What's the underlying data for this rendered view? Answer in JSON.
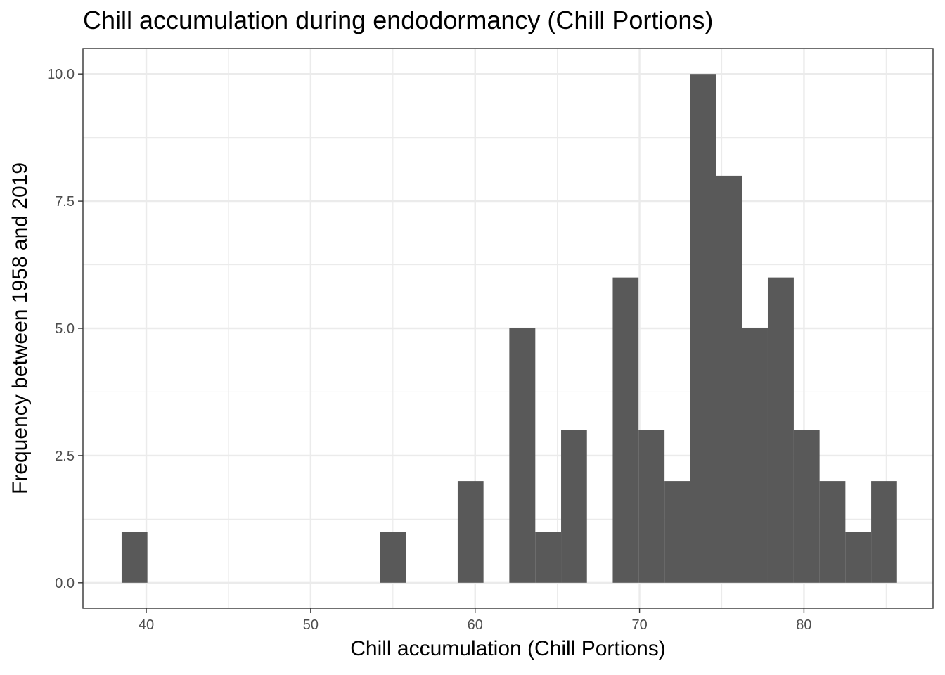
{
  "chart_data": {
    "type": "bar",
    "title": "Chill accumulation during endodormancy (Chill Portions)",
    "xlabel": "Chill accumulation (Chill Portions)",
    "ylabel": "Frequency between 1958 and 2019",
    "xlim": [
      36.15,
      87.85
    ],
    "ylim": [
      -0.5,
      10.5
    ],
    "x_ticks": [
      40,
      50,
      60,
      70,
      80
    ],
    "y_ticks": [
      0.0,
      2.5,
      5.0,
      7.5,
      10.0
    ],
    "y_tick_labels": [
      "0.0",
      "2.5",
      "5.0",
      "7.5",
      "10.0"
    ],
    "x_tick_labels": [
      "40",
      "50",
      "60",
      "70",
      "80"
    ],
    "grid": true,
    "bin_width": 1.572,
    "bins": [
      {
        "x_start": 38.5,
        "x_end": 40.07,
        "count": 1
      },
      {
        "x_start": 54.22,
        "x_end": 55.79,
        "count": 1
      },
      {
        "x_start": 58.94,
        "x_end": 60.51,
        "count": 2
      },
      {
        "x_start": 62.08,
        "x_end": 63.66,
        "count": 5
      },
      {
        "x_start": 63.66,
        "x_end": 65.23,
        "count": 1
      },
      {
        "x_start": 65.23,
        "x_end": 66.8,
        "count": 3
      },
      {
        "x_start": 68.37,
        "x_end": 69.94,
        "count": 6
      },
      {
        "x_start": 69.94,
        "x_end": 71.52,
        "count": 3
      },
      {
        "x_start": 71.52,
        "x_end": 73.09,
        "count": 2
      },
      {
        "x_start": 73.09,
        "x_end": 74.66,
        "count": 10
      },
      {
        "x_start": 74.66,
        "x_end": 76.23,
        "count": 8
      },
      {
        "x_start": 76.23,
        "x_end": 77.8,
        "count": 5
      },
      {
        "x_start": 77.8,
        "x_end": 79.38,
        "count": 6
      },
      {
        "x_start": 79.38,
        "x_end": 80.95,
        "count": 3
      },
      {
        "x_start": 80.95,
        "x_end": 82.52,
        "count": 2
      },
      {
        "x_start": 82.52,
        "x_end": 84.09,
        "count": 1
      },
      {
        "x_start": 84.09,
        "x_end": 85.66,
        "count": 2
      }
    ],
    "bar_color": "#595959"
  }
}
